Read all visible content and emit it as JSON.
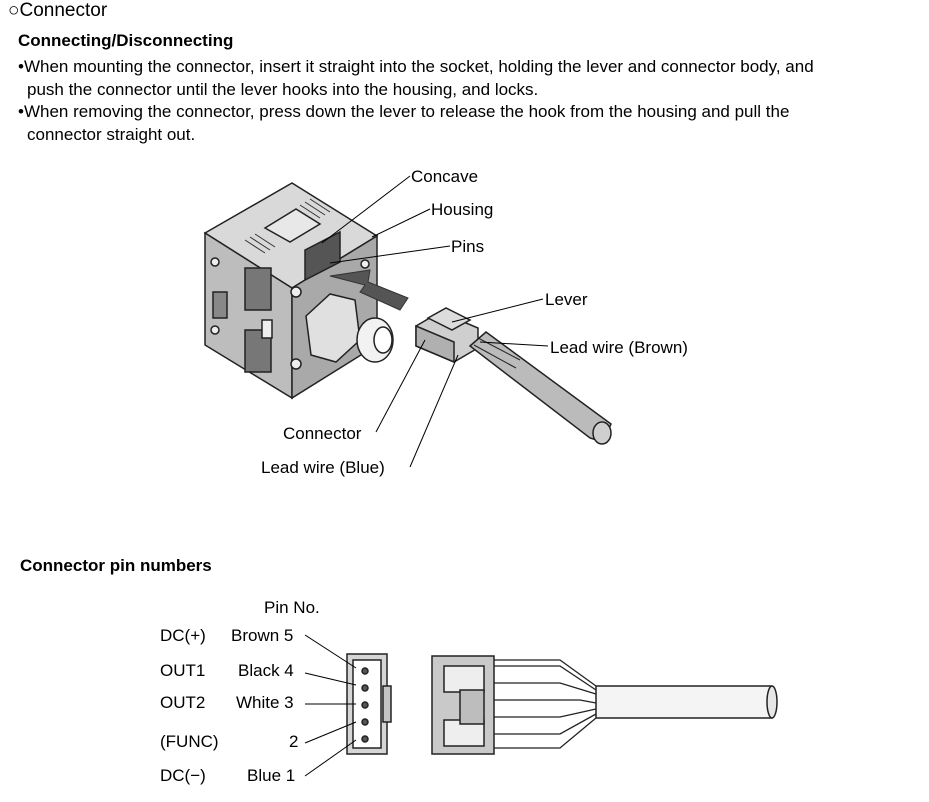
{
  "section": {
    "bullet": "○",
    "title": "Connector"
  },
  "connecting": {
    "heading": "Connecting/Disconnecting",
    "bullets": [
      {
        "marker": "•",
        "line1": "When mounting the connector, insert it straight into the socket, holding the lever and connector body, and",
        "line2": "push the connector until the lever hooks into the housing, and locks."
      },
      {
        "marker": "•",
        "line1": "When removing the connector, press down the lever to release the hook from the housing and pull the",
        "line2": "connector straight out."
      }
    ]
  },
  "illustration1": {
    "labels": {
      "concave": "Concave",
      "housing": "Housing",
      "pins": "Pins",
      "lever": "Lever",
      "lead_brown": "Lead  wire (Brown)",
      "connector": "Connector",
      "lead_blue": "Lead  wire (Blue)"
    }
  },
  "pinout": {
    "heading": "Connector pin numbers",
    "column_header": "Pin No.",
    "rows": [
      {
        "signal": "DC(+)",
        "wire": "Brown 5"
      },
      {
        "signal": "OUT1",
        "wire": "Black 4"
      },
      {
        "signal": "OUT2",
        "wire": "White 3"
      },
      {
        "signal": "(FUNC)",
        "wire": "2"
      },
      {
        "signal": "DC(−)",
        "wire": "Blue 1"
      }
    ]
  }
}
